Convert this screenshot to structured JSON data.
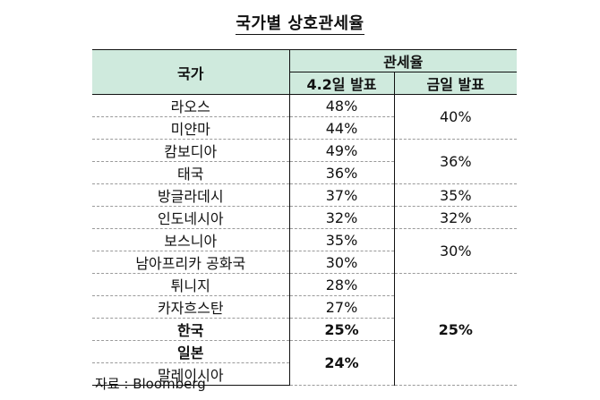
{
  "title": "국가별 상호관세율",
  "table": {
    "header": {
      "country": "국가",
      "tariff_rate": "관세율",
      "apr2": "4.2일 발표",
      "today": "금일 발표"
    },
    "rows": [
      {
        "country": "라오스",
        "apr2": "48%"
      },
      {
        "country": "미얀마",
        "apr2": "44%"
      },
      {
        "country": "캄보디아",
        "apr2": "49%"
      },
      {
        "country": "태국",
        "apr2": "36%"
      },
      {
        "country": "방글라데시",
        "apr2": "37%"
      },
      {
        "country": "인도네시아",
        "apr2": "32%"
      },
      {
        "country": "보스니아",
        "apr2": "35%"
      },
      {
        "country": "남아프리카 공화국",
        "apr2": "30%"
      },
      {
        "country": "튀니지",
        "apr2": "28%"
      },
      {
        "country": "카자흐스탄",
        "apr2": "27%"
      },
      {
        "country": "한국",
        "apr2": "25%"
      },
      {
        "country": "일본",
        "apr2": "24%"
      },
      {
        "country": "말레이시아",
        "apr2": ""
      }
    ],
    "today_groups": [
      "40%",
      "36%",
      "35%",
      "32%",
      "30%",
      "25%"
    ]
  },
  "source": "자료 : Bloomberg"
}
